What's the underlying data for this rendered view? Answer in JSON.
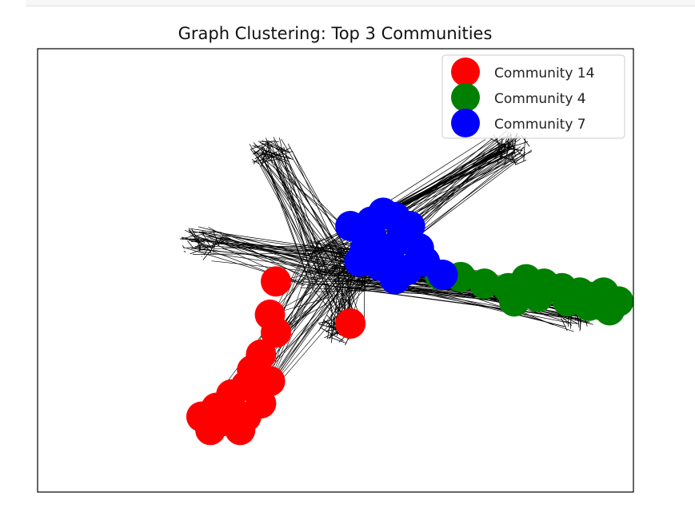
{
  "chart_data": {
    "type": "network-scatter",
    "title": "Graph Clustering: Top 3 Communities",
    "xlabel": "",
    "ylabel": "",
    "axis_ticks": false,
    "legend_position": "upper right",
    "edge_color": "#000000",
    "series": [
      {
        "name": "Community 14",
        "color": "#ff0000",
        "description_points": [
          [
            -0.2,
            -0.05
          ],
          [
            -0.22,
            -0.2
          ],
          [
            0.05,
            -0.24
          ],
          [
            -0.2,
            -0.28
          ],
          [
            -0.25,
            -0.38
          ],
          [
            -0.28,
            -0.45
          ],
          [
            -0.3,
            -0.52
          ],
          [
            -0.35,
            -0.56
          ],
          [
            -0.4,
            -0.62
          ],
          [
            -0.45,
            -0.66
          ],
          [
            -0.38,
            -0.68
          ],
          [
            -0.3,
            -0.66
          ],
          [
            -0.25,
            -0.6
          ],
          [
            -0.32,
            -0.72
          ],
          [
            -0.42,
            -0.72
          ],
          [
            -0.22,
            -0.5
          ]
        ]
      },
      {
        "name": "Community 4",
        "color": "#008000",
        "description_points": [
          [
            0.35,
            -0.02
          ],
          [
            0.42,
            -0.03
          ],
          [
            0.5,
            -0.06
          ],
          [
            0.58,
            -0.08
          ],
          [
            0.64,
            -0.04
          ],
          [
            0.7,
            -0.06
          ],
          [
            0.76,
            -0.08
          ],
          [
            0.82,
            -0.1
          ],
          [
            0.86,
            -0.12
          ],
          [
            0.9,
            -0.1
          ],
          [
            0.95,
            -0.14
          ],
          [
            0.92,
            -0.18
          ],
          [
            0.85,
            -0.16
          ],
          [
            0.68,
            -0.12
          ],
          [
            0.6,
            -0.14
          ],
          [
            0.78,
            -0.14
          ]
        ]
      },
      {
        "name": "Community 7",
        "color": "#0000ff",
        "description_points": [
          [
            0.05,
            0.2
          ],
          [
            0.12,
            0.22
          ],
          [
            0.16,
            0.26
          ],
          [
            0.2,
            0.24
          ],
          [
            0.25,
            0.2
          ],
          [
            0.22,
            0.14
          ],
          [
            0.28,
            0.1
          ],
          [
            0.18,
            0.08
          ],
          [
            0.1,
            0.1
          ],
          [
            0.08,
            0.04
          ],
          [
            0.15,
            0.02
          ],
          [
            0.24,
            0.0
          ],
          [
            0.3,
            0.04
          ],
          [
            0.36,
            -0.02
          ],
          [
            0.2,
            -0.04
          ],
          [
            0.12,
            0.16
          ]
        ]
      }
    ],
    "uncolored_clusters": [
      {
        "center": [
          -0.45,
          0.12
        ]
      },
      {
        "center": [
          -0.22,
          0.52
        ]
      },
      {
        "center": [
          0.02,
          -0.26
        ]
      },
      {
        "center": [
          0.8,
          -0.2
        ]
      },
      {
        "center": [
          0.58,
          0.55
        ]
      }
    ]
  }
}
